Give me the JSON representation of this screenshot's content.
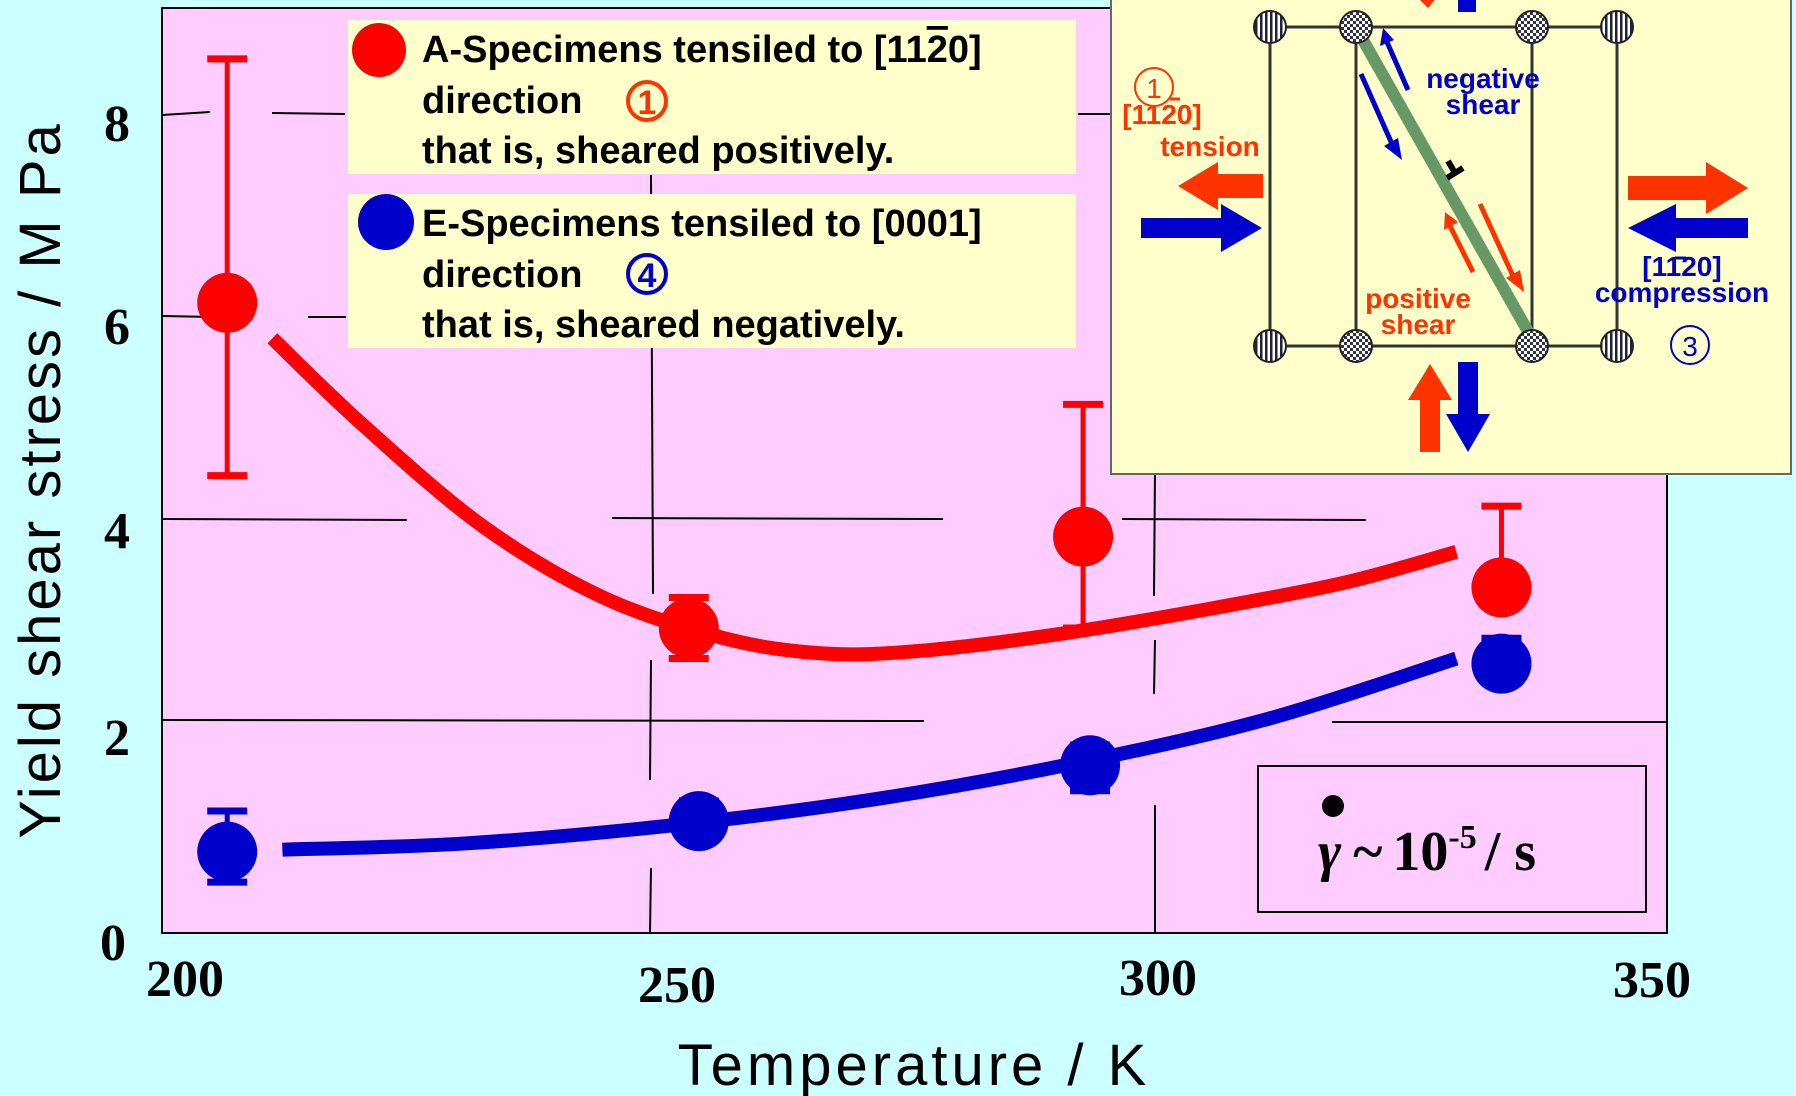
{
  "chart_data": {
    "type": "scatter",
    "xlabel": "Temperature  /  K",
    "ylabel": "Yield shear stress / M Pa",
    "xlim": [
      200,
      350
    ],
    "ylim": [
      0,
      9.1
    ],
    "xticks": [
      200,
      250,
      300,
      350
    ],
    "yticks": [
      0,
      2,
      4,
      6,
      8
    ],
    "grid": true,
    "plot_bg": "#ffccff",
    "series": [
      {
        "name": "A-Specimens tensiled  to [1120] direction that is, sheared positively.",
        "color": "#ff0000",
        "points": [
          {
            "x": 206.5,
            "y": 6.2,
            "lo": 4.5,
            "hi": 8.6
          },
          {
            "x": 252.5,
            "y": 3.0,
            "lo": 2.7,
            "hi": 3.3
          },
          {
            "x": 291.8,
            "y": 3.9,
            "lo": 3.0,
            "hi": 5.2
          },
          {
            "x": 333.5,
            "y": 3.4,
            "lo": 3.4,
            "hi": 4.2
          }
        ],
        "fit": [
          [
            211,
            5.85
          ],
          [
            220,
            5.0
          ],
          [
            232,
            4.0
          ],
          [
            244,
            3.3
          ],
          [
            256,
            2.9
          ],
          [
            266,
            2.75
          ],
          [
            276,
            2.78
          ],
          [
            290,
            2.95
          ],
          [
            305,
            3.2
          ],
          [
            318,
            3.45
          ],
          [
            329,
            3.75
          ]
        ]
      },
      {
        "name": "E-Specimens tensiled  to [0001] direction that is, sheared negatively.",
        "color": "#0000cc",
        "points": [
          {
            "x": 206.5,
            "y": 0.8,
            "lo": 0.5,
            "hi": 1.2
          },
          {
            "x": 253.5,
            "y": 1.1,
            "lo": 1.0,
            "hi": 1.3
          },
          {
            "x": 292.5,
            "y": 1.65,
            "lo": 1.4,
            "hi": 1.85
          },
          {
            "x": 333.5,
            "y": 2.65,
            "lo": 2.55,
            "hi": 2.9
          }
        ],
        "fit": [
          [
            212,
            0.82
          ],
          [
            230,
            0.88
          ],
          [
            250,
            1.05
          ],
          [
            270,
            1.3
          ],
          [
            290,
            1.65
          ],
          [
            310,
            2.1
          ],
          [
            329,
            2.7
          ]
        ]
      }
    ]
  },
  "legend": {
    "a_line1": "A-Specimens tensiled  to [11",
    "a_bar": "2",
    "a_end": "0]",
    "a_line2": "direction",
    "a_num": "1",
    "a_line3": "that is, sheared positively.",
    "e_line1": "E-Specimens tensiled  to [0001]",
    "e_line2": "direction",
    "e_num": "4",
    "e_line3": "that is, sheared negatively."
  },
  "rate_box": {
    "gamma": "γ",
    "tilde": "~",
    "base": "10",
    "exp": "-5",
    "unit": "/ s"
  },
  "inset": {
    "label_circle1": "1",
    "label_tension_dir": "[1120]",
    "label_tension": "tension",
    "label_neg1": "negative",
    "label_neg2": "shear",
    "label_pos1": "positive",
    "label_pos2": "shear",
    "label_comp_dir": "[1120]",
    "label_comp": "compression",
    "label_circle3": "3"
  }
}
